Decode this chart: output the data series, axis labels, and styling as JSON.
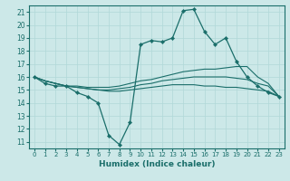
{
  "xlabel": "Humidex (Indice chaleur)",
  "bg_color": "#cce8e8",
  "line_color": "#1a6e6a",
  "grid_color": "#b0d8d8",
  "xlim": [
    -0.5,
    23.5
  ],
  "ylim": [
    10.5,
    21.5
  ],
  "yticks": [
    11,
    12,
    13,
    14,
    15,
    16,
    17,
    18,
    19,
    20,
    21
  ],
  "xticks": [
    0,
    1,
    2,
    3,
    4,
    5,
    6,
    7,
    8,
    9,
    10,
    11,
    12,
    13,
    14,
    15,
    16,
    17,
    18,
    19,
    20,
    21,
    22,
    23
  ],
  "lines": [
    {
      "x": [
        0,
        1,
        2,
        3,
        4,
        5,
        6,
        7,
        8,
        9,
        10,
        11,
        12,
        13,
        14,
        15,
        16,
        17,
        18,
        19,
        20,
        21,
        22,
        23
      ],
      "y": [
        16,
        15.5,
        15.3,
        15.3,
        14.8,
        14.5,
        14.0,
        11.5,
        10.8,
        12.5,
        18.5,
        18.8,
        18.7,
        19.0,
        21.1,
        21.2,
        19.5,
        18.5,
        19.0,
        17.2,
        16.0,
        15.3,
        14.8,
        14.5
      ],
      "marker": true
    },
    {
      "x": [
        0,
        1,
        2,
        3,
        4,
        5,
        6,
        7,
        8,
        9,
        10,
        11,
        12,
        13,
        14,
        15,
        16,
        17,
        18,
        19,
        20,
        21,
        22,
        23
      ],
      "y": [
        16,
        15.7,
        15.5,
        15.3,
        15.3,
        15.2,
        15.2,
        15.2,
        15.3,
        15.5,
        15.7,
        15.8,
        16.0,
        16.2,
        16.4,
        16.5,
        16.6,
        16.6,
        16.7,
        16.8,
        16.8,
        16.0,
        15.5,
        14.5
      ],
      "marker": false
    },
    {
      "x": [
        0,
        1,
        2,
        3,
        4,
        5,
        6,
        7,
        8,
        9,
        10,
        11,
        12,
        13,
        14,
        15,
        16,
        17,
        18,
        19,
        20,
        21,
        22,
        23
      ],
      "y": [
        16,
        15.7,
        15.5,
        15.3,
        15.2,
        15.1,
        15.0,
        15.0,
        15.1,
        15.2,
        15.4,
        15.5,
        15.7,
        15.8,
        15.9,
        16.0,
        16.0,
        16.0,
        16.0,
        15.9,
        15.8,
        15.5,
        15.3,
        14.5
      ],
      "marker": false
    },
    {
      "x": [
        0,
        1,
        2,
        3,
        4,
        5,
        6,
        7,
        8,
        9,
        10,
        11,
        12,
        13,
        14,
        15,
        16,
        17,
        18,
        19,
        20,
        21,
        22,
        23
      ],
      "y": [
        16,
        15.7,
        15.5,
        15.3,
        15.2,
        15.1,
        15.0,
        14.9,
        14.9,
        15.0,
        15.1,
        15.2,
        15.3,
        15.4,
        15.4,
        15.4,
        15.3,
        15.3,
        15.2,
        15.2,
        15.1,
        15.0,
        14.9,
        14.5
      ],
      "marker": false
    }
  ]
}
